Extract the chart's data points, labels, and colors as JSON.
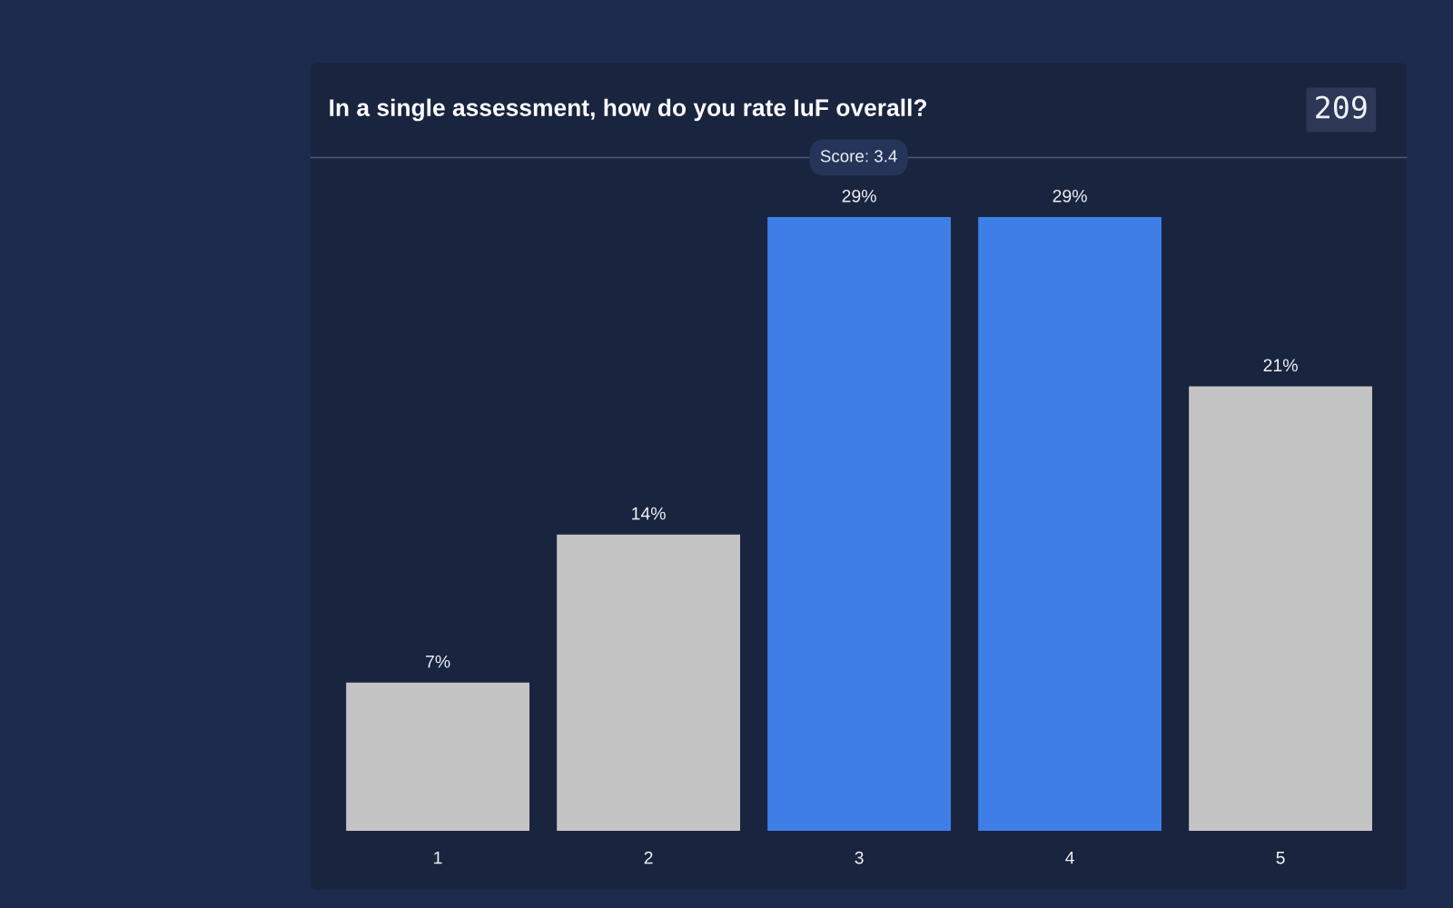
{
  "chart_data": {
    "type": "bar",
    "title": "In a single assessment, how do you rate IuF overall?",
    "categories": [
      "1",
      "2",
      "3",
      "4",
      "5"
    ],
    "values": [
      7,
      14,
      29,
      29,
      21
    ],
    "colors": [
      "#c4c4c4",
      "#c4c4c4",
      "#3e7ee6",
      "#3e7ee6",
      "#c4c4c4"
    ],
    "value_labels": [
      "7%",
      "14%",
      "29%",
      "29%",
      "21%"
    ],
    "annotations": [
      "Score: 3.4",
      "209"
    ]
  }
}
